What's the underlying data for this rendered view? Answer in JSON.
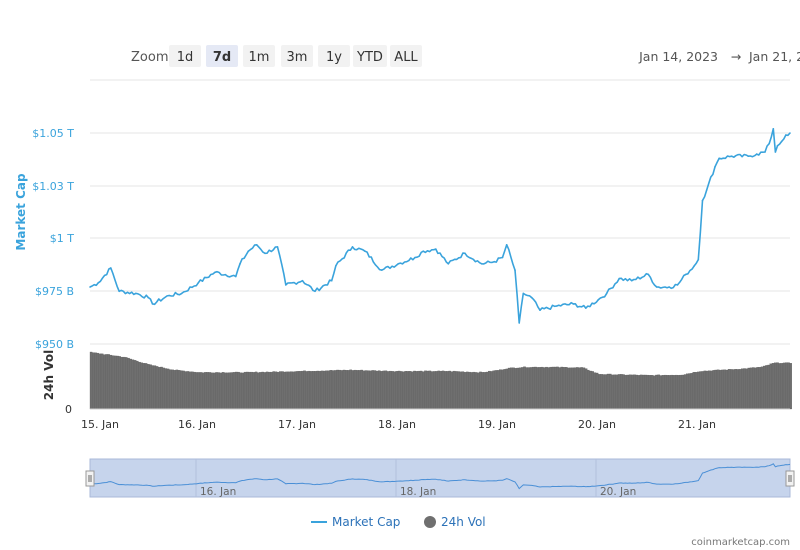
{
  "toolbar": {
    "zoom_label": "Zoom",
    "zoom_buttons": [
      "1d",
      "7d",
      "1m",
      "3m",
      "1y",
      "YTD",
      "ALL"
    ],
    "active_zoom": "7d",
    "date_from": "Jan 14, 2023",
    "date_arrow": "→",
    "date_to": "Jan 21, 2"
  },
  "axes": {
    "market_cap_title": "Market Cap",
    "volume_title": "24h Vol",
    "market_cap_ticks": [
      "$1.05 T",
      "$1.03 T",
      "$1 T",
      "$975 B",
      "$950 B"
    ],
    "volume_ticks": [
      "0"
    ],
    "x_ticks": [
      "15. Jan",
      "16. Jan",
      "17. Jan",
      "18. Jan",
      "19. Jan",
      "20. Jan",
      "21. Jan"
    ],
    "navigator_ticks": [
      "16. Jan",
      "18. Jan",
      "20. Jan"
    ]
  },
  "legend": {
    "market_cap": "Market Cap",
    "volume": "24h Vol"
  },
  "credit": "coinmarketcap.com",
  "colors": {
    "market_cap_line": "#3aa3dc",
    "volume_bars": "#6f6f6f",
    "navigator_fill": "#c6d4ec",
    "legend_text": "#2c72b8"
  },
  "chart_data": [
    {
      "type": "line",
      "title": "",
      "ylabel": "Market Cap",
      "xlabel": "",
      "x_range": [
        "2023-01-14T22:00",
        "2023-01-21T22:00"
      ],
      "ylim_billion_usd": [
        950,
        1055
      ],
      "grid": true,
      "series": [
        {
          "name": "Market Cap",
          "unit": "billion USD",
          "points": [
            [
              "2023-01-14T22:00",
              977
            ],
            [
              "2023-01-15T00:00",
              979
            ],
            [
              "2023-01-15T03:00",
              986
            ],
            [
              "2023-01-15T05:00",
              975
            ],
            [
              "2023-01-15T09:00",
              974
            ],
            [
              "2023-01-15T12:00",
              972
            ],
            [
              "2023-01-15T13:00",
              969
            ],
            [
              "2023-01-15T17:00",
              973
            ],
            [
              "2023-01-15T20:00",
              974
            ],
            [
              "2023-01-16T00:00",
              979
            ],
            [
              "2023-01-16T04:00",
              984
            ],
            [
              "2023-01-16T09:00",
              982
            ],
            [
              "2023-01-16T10:00",
              988
            ],
            [
              "2023-01-16T12:00",
              994
            ],
            [
              "2023-01-16T14:00",
              997
            ],
            [
              "2023-01-16T16:00",
              993
            ],
            [
              "2023-01-16T19:00",
              996
            ],
            [
              "2023-01-16T21:00",
              978
            ],
            [
              "2023-01-17T01:00",
              980
            ],
            [
              "2023-01-17T04:00",
              975
            ],
            [
              "2023-01-17T08:00",
              980
            ],
            [
              "2023-01-17T09:00",
              987
            ],
            [
              "2023-01-17T13:00",
              996
            ],
            [
              "2023-01-17T16:00",
              994
            ],
            [
              "2023-01-17T20:00",
              985
            ],
            [
              "2023-01-18T00:00",
              988
            ],
            [
              "2023-01-18T04:00",
              991
            ],
            [
              "2023-01-18T06:00",
              994
            ],
            [
              "2023-01-18T09:00",
              995
            ],
            [
              "2023-01-18T12:00",
              988
            ],
            [
              "2023-01-18T16:00",
              993
            ],
            [
              "2023-01-18T20:00",
              988
            ],
            [
              "2023-01-18T23:00",
              989
            ],
            [
              "2023-01-19T01:00",
              991
            ],
            [
              "2023-01-19T02:00",
              997
            ],
            [
              "2023-01-19T04:00",
              985
            ],
            [
              "2023-01-19T05:00",
              960
            ],
            [
              "2023-01-19T06:00",
              974
            ],
            [
              "2023-01-19T08:00",
              972
            ],
            [
              "2023-01-19T10:00",
              966
            ],
            [
              "2023-01-19T14:00",
              968
            ],
            [
              "2023-01-19T18:00",
              969
            ],
            [
              "2023-01-19T21:00",
              967
            ],
            [
              "2023-01-20T00:00",
              971
            ],
            [
              "2023-01-20T02:00",
              974
            ],
            [
              "2023-01-20T05:00",
              981
            ],
            [
              "2023-01-20T08:00",
              980
            ],
            [
              "2023-01-20T12:00",
              983
            ],
            [
              "2023-01-20T14:00",
              977
            ],
            [
              "2023-01-20T17:00",
              977
            ],
            [
              "2023-01-20T19:00",
              978
            ],
            [
              "2023-01-20T21:00",
              983
            ],
            [
              "2023-01-20T23:00",
              987
            ],
            [
              "2023-01-21T00:00",
              990
            ],
            [
              "2023-01-21T01:00",
              1018
            ],
            [
              "2023-01-21T02:00",
              1023
            ],
            [
              "2023-01-21T04:00",
              1034
            ],
            [
              "2023-01-21T05:00",
              1038
            ],
            [
              "2023-01-21T08:00",
              1039
            ],
            [
              "2023-01-21T12:00",
              1039
            ],
            [
              "2023-01-21T14:00",
              1040
            ],
            [
              "2023-01-21T16:00",
              1041
            ],
            [
              "2023-01-21T17:00",
              1045
            ],
            [
              "2023-01-21T18:00",
              1052
            ],
            [
              "2023-01-21T18:30",
              1041
            ],
            [
              "2023-01-21T19:00",
              1044
            ],
            [
              "2023-01-21T20:00",
              1046
            ],
            [
              "2023-01-21T21:00",
              1049
            ],
            [
              "2023-01-21T22:00",
              1050
            ]
          ]
        }
      ]
    },
    {
      "type": "bar",
      "title": "",
      "ylabel": "24h Vol",
      "xlabel": "",
      "ylim_relative": [
        0,
        1
      ],
      "note": "volume axis shows only the 0 tick; values are relative bar heights",
      "series": [
        {
          "name": "24h Vol",
          "points": [
            [
              "2023-01-14T22:00",
              0.96
            ],
            [
              "2023-01-15T06:00",
              0.88
            ],
            [
              "2023-01-15T12:00",
              0.75
            ],
            [
              "2023-01-15T18:00",
              0.66
            ],
            [
              "2023-01-16T00:00",
              0.62
            ],
            [
              "2023-01-16T12:00",
              0.62
            ],
            [
              "2023-01-17T00:00",
              0.64
            ],
            [
              "2023-01-17T12:00",
              0.66
            ],
            [
              "2023-01-18T00:00",
              0.64
            ],
            [
              "2023-01-18T12:00",
              0.64
            ],
            [
              "2023-01-18T20:00",
              0.62
            ],
            [
              "2023-01-19T00:00",
              0.66
            ],
            [
              "2023-01-19T02:00",
              0.69
            ],
            [
              "2023-01-19T06:00",
              0.71
            ],
            [
              "2023-01-19T12:00",
              0.71
            ],
            [
              "2023-01-19T20:00",
              0.7
            ],
            [
              "2023-01-20T00:00",
              0.59
            ],
            [
              "2023-01-20T12:00",
              0.57
            ],
            [
              "2023-01-20T20:00",
              0.58
            ],
            [
              "2023-01-21T00:00",
              0.64
            ],
            [
              "2023-01-21T10:00",
              0.68
            ],
            [
              "2023-01-21T15:00",
              0.71
            ],
            [
              "2023-01-21T18:00",
              0.78
            ],
            [
              "2023-01-21T22:00",
              0.78
            ]
          ]
        }
      ]
    }
  ]
}
